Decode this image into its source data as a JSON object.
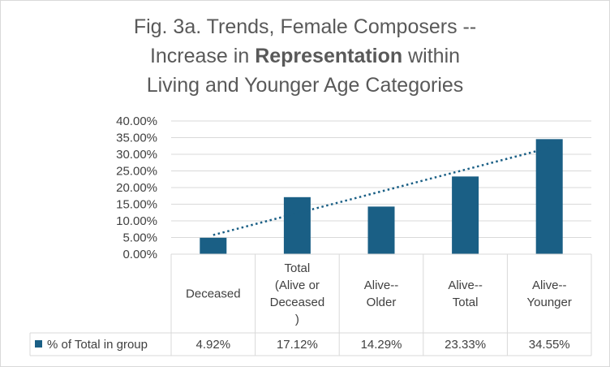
{
  "title": {
    "line1": "Fig. 3a. Trends, Female Composers --",
    "line2_pre": "Increase in ",
    "line2_bold": "Representation",
    "line2_post": " within",
    "line3": "Living and Younger Age Categories"
  },
  "colors": {
    "bar": "#1a5f85",
    "trend": "#1a5f85",
    "grid": "#d9d9d9",
    "text": "#404040"
  },
  "chart_data": {
    "type": "bar",
    "title": "Fig. 3a. Trends, Female Composers -- Increase in Representation within Living and Younger Age Categories",
    "categories": [
      [
        "Deceased"
      ],
      [
        "Total",
        "(Alive or",
        "Deceased",
        ")"
      ],
      [
        "Alive--",
        "Older"
      ],
      [
        "Alive--",
        "Total"
      ],
      [
        "Alive--",
        "Younger"
      ]
    ],
    "series": [
      {
        "name": "% of Total in group",
        "values": [
          4.92,
          17.12,
          14.29,
          23.33,
          34.55
        ],
        "labels": [
          "4.92%",
          "17.12%",
          "14.29%",
          "23.33%",
          "34.55%"
        ]
      }
    ],
    "trendline": {
      "type": "linear",
      "style": "dotted",
      "series": "% of Total in group"
    },
    "yticks": [
      "0.00%",
      "5.00%",
      "10.00%",
      "15.00%",
      "20.00%",
      "25.00%",
      "30.00%",
      "35.00%",
      "40.00%"
    ],
    "ylim": [
      0,
      40
    ],
    "grid": true,
    "data_table": true,
    "legend": "data-table-key",
    "xlabel": "",
    "ylabel": ""
  }
}
